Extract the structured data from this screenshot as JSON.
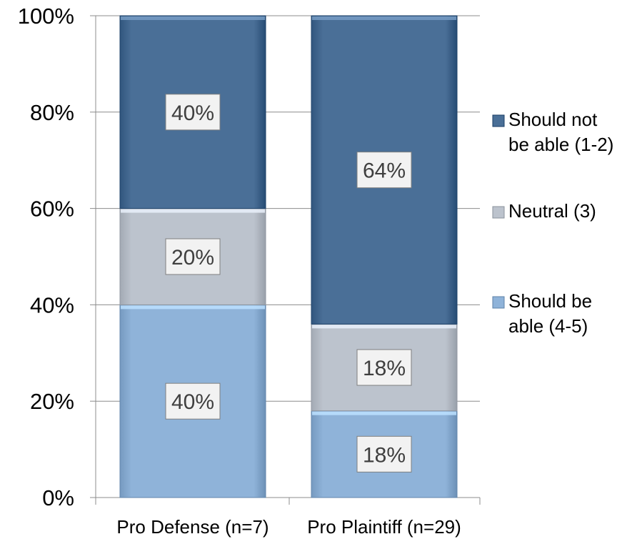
{
  "chart_data": {
    "type": "bar",
    "stacked": true,
    "percent": true,
    "categories": [
      "Pro Defense (n=7)",
      "Pro Plaintiff (n=29)"
    ],
    "series": [
      {
        "name": "Should be able (4-5)",
        "values": [
          40,
          18
        ],
        "labels": [
          "40%",
          "18%"
        ],
        "color": "#8fb3d9"
      },
      {
        "name": "Neutral (3)",
        "values": [
          20,
          18
        ],
        "labels": [
          "20%",
          "18%"
        ],
        "color": "#bcc3cd"
      },
      {
        "name": "Should not be able (1-2)",
        "values": [
          40,
          64
        ],
        "labels": [
          "40%",
          "64%"
        ],
        "color": "#4a6f97"
      }
    ],
    "legend": {
      "placement": "right",
      "entries": [
        {
          "lines": [
            "Should not",
            "be able (1-2)"
          ],
          "color": "#4a6f97"
        },
        {
          "lines": [
            "Neutral (3)"
          ],
          "color": "#bcc3cd"
        },
        {
          "lines": [
            "Should be",
            "able (4-5)"
          ],
          "color": "#8fb3d9"
        }
      ]
    },
    "yticks": [
      "0%",
      "20%",
      "40%",
      "60%",
      "80%",
      "100%"
    ],
    "ytick_values": [
      0,
      20,
      40,
      60,
      80,
      100
    ],
    "ylim": [
      0,
      100
    ],
    "grid": true,
    "title": "",
    "xlabel": "",
    "ylabel": ""
  }
}
